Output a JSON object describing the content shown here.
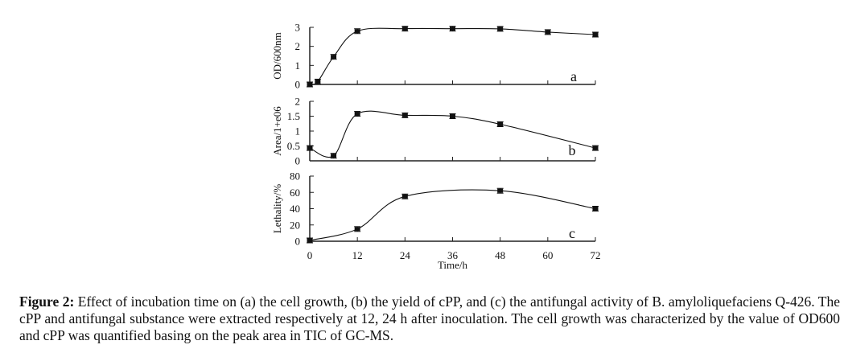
{
  "chart_data": [
    {
      "type": "line",
      "panel": "a",
      "ylabel": "OD/600nm",
      "ylim": [
        0,
        3
      ],
      "yticks": [
        "0",
        "1",
        "2",
        "3"
      ],
      "yticks_values": [
        0,
        1,
        2,
        3
      ],
      "x": [
        0,
        2,
        6,
        12,
        24,
        36,
        48,
        60,
        72
      ],
      "values": [
        0.0,
        0.15,
        1.45,
        2.8,
        2.93,
        2.93,
        2.92,
        2.75,
        2.62
      ],
      "error_bars": true,
      "grid": false,
      "annotation": "a"
    },
    {
      "type": "line",
      "panel": "b",
      "ylabel": "Area/1+e06",
      "ylim": [
        0,
        2
      ],
      "yticks": [
        "0",
        "0.5",
        "1",
        "1.5",
        "2"
      ],
      "yticks_values": [
        0,
        0.5,
        1,
        1.5,
        2
      ],
      "x": [
        0,
        6,
        12,
        24,
        36,
        48,
        72
      ],
      "values": [
        0.43,
        0.17,
        1.58,
        1.53,
        1.5,
        1.23,
        0.43
      ],
      "error_bars": true,
      "grid": false,
      "annotation": "b"
    },
    {
      "type": "line",
      "panel": "c",
      "ylabel": "Lethality/%",
      "ylim": [
        0,
        80
      ],
      "yticks": [
        "0",
        "20",
        "40",
        "60",
        "80"
      ],
      "yticks_values": [
        0,
        20,
        40,
        60,
        80
      ],
      "x": [
        0,
        12,
        24,
        48,
        72
      ],
      "values": [
        1,
        15,
        55,
        62,
        40
      ],
      "error_bars": true,
      "grid": false,
      "annotation": "c",
      "xlabel": "Time/h",
      "xlim": [
        0,
        72
      ],
      "xticks": [
        "0",
        "12",
        "24",
        "36",
        "48",
        "60",
        "72"
      ],
      "xticks_values": [
        0,
        12,
        24,
        36,
        48,
        60,
        72
      ]
    }
  ],
  "caption": {
    "label": "Figure 2:",
    "text": " Effect of incubation time on (a) the cell growth, (b) the yield of cPP, and (c) the antifungal activity of B. amyloliquefaciens Q-426. The cPP and antifungal substance were extracted respectively at 12, 24 h after inoculation. The cell growth was characterized by the value of OD600 and cPP was quantified basing on the peak area in TIC of GC-MS."
  },
  "colors": {
    "line": "#111111",
    "marker": "#111111",
    "axis": "#222222"
  }
}
